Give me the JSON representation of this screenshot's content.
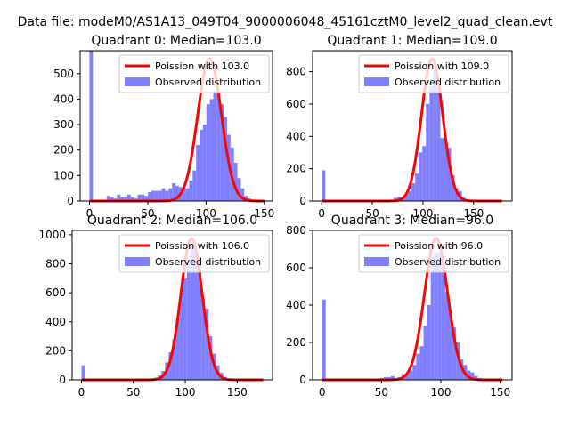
{
  "figure": {
    "suptitle": "Data file: modeM0/AS1A13_049T04_9000006048_45161cztM0_level2_quad_clean.evt"
  },
  "colors": {
    "hist_fill": "#8080ff",
    "fit_line": "#ff0000",
    "axes": "#000000"
  },
  "chart_data": [
    {
      "type": "bar",
      "title": "Quadrant 0: Median=103.0",
      "xlabel": "",
      "ylabel": "",
      "xlim": [
        -8,
        157
      ],
      "ylim": [
        0,
        590
      ],
      "xticks": [
        0,
        50,
        100,
        150
      ],
      "yticks": [
        0,
        100,
        200,
        300,
        400,
        500
      ],
      "legend_position": "top-right",
      "bin_width": 2.95,
      "series": [
        {
          "name": "Observed distribution",
          "kind": "histogram",
          "bins": [
            [
              0,
              590
            ],
            [
              2.95,
              0
            ],
            [
              5.9,
              0
            ],
            [
              8.85,
              0
            ],
            [
              11.8,
              0
            ],
            [
              14.75,
              20
            ],
            [
              17.7,
              15
            ],
            [
              20.65,
              10
            ],
            [
              23.6,
              25
            ],
            [
              26.55,
              15
            ],
            [
              29.5,
              15
            ],
            [
              32.45,
              25
            ],
            [
              35.4,
              15
            ],
            [
              38.35,
              10
            ],
            [
              41.3,
              25
            ],
            [
              44.25,
              25
            ],
            [
              47.2,
              20
            ],
            [
              50.15,
              35
            ],
            [
              53.1,
              40
            ],
            [
              56.05,
              40
            ],
            [
              59,
              40
            ],
            [
              61.95,
              50
            ],
            [
              64.9,
              40
            ],
            [
              67.85,
              50
            ],
            [
              70.8,
              70
            ],
            [
              73.75,
              60
            ],
            [
              76.7,
              55
            ],
            [
              79.65,
              55
            ],
            [
              82.6,
              50
            ],
            [
              85.55,
              80
            ],
            [
              88.5,
              120
            ],
            [
              91.45,
              220
            ],
            [
              94.4,
              280
            ],
            [
              97.35,
              300
            ],
            [
              100.3,
              380
            ],
            [
              103.25,
              400
            ],
            [
              106.2,
              430
            ],
            [
              109.15,
              420
            ],
            [
              112.1,
              380
            ],
            [
              115.05,
              330
            ],
            [
              118,
              260
            ],
            [
              120.95,
              210
            ],
            [
              123.9,
              150
            ],
            [
              126.85,
              90
            ],
            [
              129.8,
              50
            ],
            [
              132.75,
              20
            ],
            [
              135.7,
              10
            ],
            [
              138.65,
              0
            ],
            [
              141.6,
              0
            ],
            [
              144.55,
              0
            ]
          ]
        },
        {
          "name": "Poission with 103.0",
          "kind": "line",
          "mean": 103.0,
          "peak": 560,
          "xrange": [
            0,
            150
          ]
        }
      ]
    },
    {
      "type": "bar",
      "title": "Quadrant 1: Median=109.0",
      "xlabel": "",
      "ylabel": "",
      "xlim": [
        -9,
        188
      ],
      "ylim": [
        0,
        930
      ],
      "xticks": [
        0,
        50,
        100,
        150
      ],
      "yticks": [
        0,
        200,
        400,
        600,
        800
      ],
      "legend_position": "top-right",
      "bin_width": 3.55,
      "series": [
        {
          "name": "Observed distribution",
          "kind": "histogram",
          "bins": [
            [
              0,
              190
            ],
            [
              3.55,
              0
            ],
            [
              7.1,
              0
            ],
            [
              10.65,
              0
            ],
            [
              14.2,
              0
            ],
            [
              17.75,
              0
            ],
            [
              21.3,
              0
            ],
            [
              24.85,
              0
            ],
            [
              28.4,
              0
            ],
            [
              31.95,
              0
            ],
            [
              35.5,
              0
            ],
            [
              39.05,
              0
            ],
            [
              42.6,
              0
            ],
            [
              46.15,
              0
            ],
            [
              49.7,
              0
            ],
            [
              53.25,
              0
            ],
            [
              56.8,
              0
            ],
            [
              60.35,
              0
            ],
            [
              63.9,
              0
            ],
            [
              67.45,
              5
            ],
            [
              71,
              20
            ],
            [
              74.55,
              25
            ],
            [
              78.1,
              20
            ],
            [
              81.65,
              40
            ],
            [
              85.2,
              60
            ],
            [
              88.75,
              110
            ],
            [
              92.3,
              170
            ],
            [
              95.85,
              300
            ],
            [
              99.4,
              340
            ],
            [
              102.95,
              600
            ],
            [
              106.5,
              710
            ],
            [
              110.05,
              820
            ],
            [
              113.6,
              700
            ],
            [
              117.15,
              390
            ],
            [
              120.7,
              380
            ],
            [
              124.25,
              330
            ],
            [
              127.8,
              160
            ],
            [
              131.35,
              80
            ],
            [
              134.9,
              60
            ],
            [
              138.45,
              20
            ],
            [
              142,
              10
            ],
            [
              145.55,
              5
            ],
            [
              149.1,
              0
            ],
            [
              152.65,
              0
            ],
            [
              156.2,
              0
            ],
            [
              159.75,
              0
            ],
            [
              163.3,
              0
            ],
            [
              166.85,
              0
            ],
            [
              170.4,
              0
            ],
            [
              173.95,
              0
            ]
          ]
        },
        {
          "name": "Poission with 109.0",
          "kind": "line",
          "mean": 109.0,
          "peak": 880,
          "xrange": [
            0,
            178
          ]
        }
      ]
    },
    {
      "type": "bar",
      "title": "Quadrant 2: Median=106.0",
      "xlabel": "",
      "ylabel": "",
      "xlim": [
        -9,
        184
      ],
      "ylim": [
        0,
        1030
      ],
      "xticks": [
        0,
        50,
        100,
        150
      ],
      "yticks": [
        0,
        200,
        400,
        600,
        800,
        1000
      ],
      "legend_position": "top-right",
      "bin_width": 3.5,
      "series": [
        {
          "name": "Observed distribution",
          "kind": "histogram",
          "bins": [
            [
              0,
              100
            ],
            [
              3.5,
              0
            ],
            [
              7,
              0
            ],
            [
              10.5,
              0
            ],
            [
              14,
              0
            ],
            [
              17.5,
              0
            ],
            [
              21,
              0
            ],
            [
              24.5,
              0
            ],
            [
              28,
              0
            ],
            [
              31.5,
              0
            ],
            [
              35,
              0
            ],
            [
              38.5,
              0
            ],
            [
              42,
              0
            ],
            [
              45.5,
              0
            ],
            [
              49,
              0
            ],
            [
              52.5,
              0
            ],
            [
              56,
              0
            ],
            [
              59.5,
              0
            ],
            [
              63,
              0
            ],
            [
              66.5,
              5
            ],
            [
              70,
              15
            ],
            [
              73.5,
              30
            ],
            [
              77,
              60
            ],
            [
              80.5,
              120
            ],
            [
              84,
              190
            ],
            [
              87.5,
              280
            ],
            [
              91,
              420
            ],
            [
              94.5,
              600
            ],
            [
              98,
              700
            ],
            [
              101.5,
              820
            ],
            [
              105,
              900
            ],
            [
              108.5,
              890
            ],
            [
              112,
              850
            ],
            [
              115.5,
              560
            ],
            [
              119,
              490
            ],
            [
              122.5,
              300
            ],
            [
              126,
              180
            ],
            [
              129.5,
              100
            ],
            [
              133,
              50
            ],
            [
              136.5,
              20
            ],
            [
              140,
              10
            ],
            [
              143.5,
              5
            ],
            [
              147,
              0
            ],
            [
              150.5,
              0
            ],
            [
              154,
              0
            ],
            [
              157.5,
              0
            ],
            [
              161,
              0
            ],
            [
              164.5,
              0
            ],
            [
              168,
              0
            ],
            [
              171.5,
              0
            ]
          ]
        },
        {
          "name": "Poission with 106.0",
          "kind": "line",
          "mean": 106.0,
          "peak": 975,
          "xrange": [
            0,
            175
          ]
        }
      ]
    },
    {
      "type": "bar",
      "title": "Quadrant 3: Median=96.0",
      "xlabel": "",
      "ylabel": "",
      "xlim": [
        -8,
        160
      ],
      "ylim": [
        0,
        800
      ],
      "xticks": [
        0,
        50,
        100,
        150
      ],
      "yticks": [
        0,
        200,
        400,
        600,
        800
      ],
      "legend_position": "top-right",
      "bin_width": 3.05,
      "series": [
        {
          "name": "Observed distribution",
          "kind": "histogram",
          "bins": [
            [
              0,
              430
            ],
            [
              3.05,
              0
            ],
            [
              6.1,
              0
            ],
            [
              9.15,
              0
            ],
            [
              12.2,
              0
            ],
            [
              15.25,
              0
            ],
            [
              18.3,
              0
            ],
            [
              21.35,
              0
            ],
            [
              24.4,
              0
            ],
            [
              27.45,
              0
            ],
            [
              30.5,
              0
            ],
            [
              33.55,
              0
            ],
            [
              36.6,
              0
            ],
            [
              39.65,
              0
            ],
            [
              42.7,
              0
            ],
            [
              45.75,
              5
            ],
            [
              48.8,
              10
            ],
            [
              51.85,
              15
            ],
            [
              54.9,
              15
            ],
            [
              57.95,
              20
            ],
            [
              61,
              10
            ],
            [
              64.05,
              15
            ],
            [
              67.1,
              30
            ],
            [
              70.15,
              35
            ],
            [
              73.2,
              50
            ],
            [
              76.25,
              80
            ],
            [
              79.3,
              140
            ],
            [
              82.35,
              180
            ],
            [
              85.4,
              290
            ],
            [
              88.45,
              400
            ],
            [
              91.5,
              660
            ],
            [
              94.55,
              680
            ],
            [
              97.6,
              680
            ],
            [
              100.65,
              620
            ],
            [
              103.7,
              470
            ],
            [
              106.75,
              360
            ],
            [
              109.8,
              280
            ],
            [
              112.85,
              200
            ],
            [
              115.9,
              110
            ],
            [
              118.95,
              80
            ],
            [
              122,
              50
            ],
            [
              125.05,
              40
            ],
            [
              128.1,
              20
            ],
            [
              131.15,
              10
            ],
            [
              134.2,
              5
            ],
            [
              137.25,
              0
            ],
            [
              140.3,
              0
            ],
            [
              143.35,
              0
            ],
            [
              146.4,
              0
            ],
            [
              149.45,
              0
            ]
          ]
        },
        {
          "name": "Poission with 96.0",
          "kind": "line",
          "mean": 96.0,
          "peak": 760,
          "xrange": [
            0,
            152
          ]
        }
      ]
    }
  ]
}
